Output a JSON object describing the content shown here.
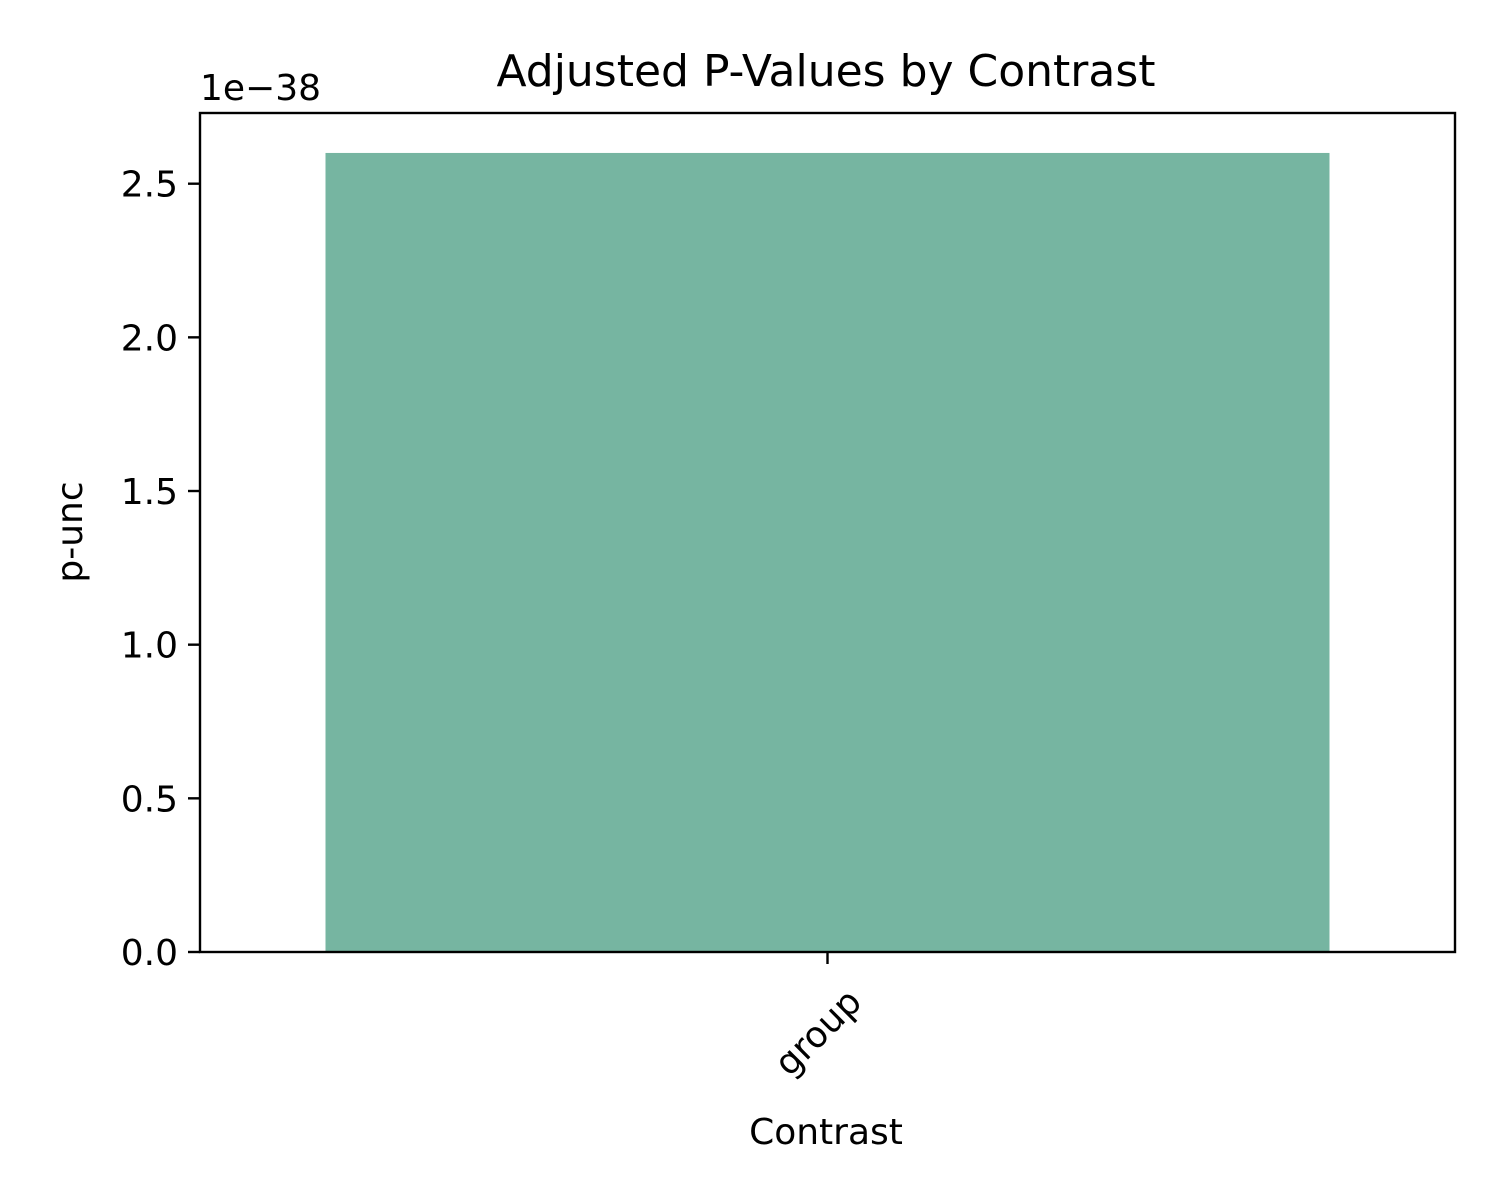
{
  "chart_data": {
    "type": "bar",
    "title": "Adjusted P-Values by Contrast",
    "xlabel": "Contrast",
    "ylabel": "p-unc",
    "categories": [
      "group"
    ],
    "values": [
      2.6e-38
    ],
    "ylim": [
      0,
      2.73e-38
    ],
    "y_offset_text": "1e−38",
    "y_ticks": [
      0,
      0.5,
      1.0,
      1.5,
      2.0,
      2.5
    ],
    "y_tick_labels": [
      "0.0",
      "0.5",
      "1.0",
      "1.5",
      "2.0",
      "2.5"
    ],
    "y_scale_factor": 1e-38,
    "x_tick_rotation": "45 degrees",
    "grid": false,
    "legend": "none",
    "colors": {
      "bar": "#76b5a1",
      "axes": "#000000",
      "background": "#ffffff"
    }
  }
}
